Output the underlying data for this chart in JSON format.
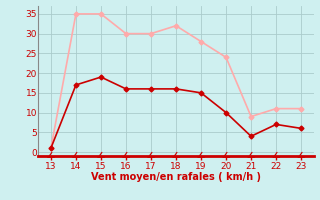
{
  "x": [
    13,
    14,
    15,
    16,
    17,
    18,
    19,
    20,
    21,
    22,
    23
  ],
  "vent_moyen": [
    1,
    17,
    19,
    16,
    16,
    16,
    15,
    10,
    4,
    7,
    6
  ],
  "rafales": [
    1,
    35,
    35,
    30,
    30,
    32,
    28,
    24,
    9,
    11,
    11
  ],
  "color_moyen": "#cc0000",
  "color_rafales": "#ffaaaa",
  "bg_color": "#cff0f0",
  "grid_color": "#aacccc",
  "xlabel": "Vent moyen/en rafales ( km/h )",
  "xlabel_color": "#cc0000",
  "yticks": [
    0,
    5,
    10,
    15,
    20,
    25,
    30,
    35
  ],
  "ylim": [
    -1,
    37
  ],
  "xlim": [
    12.5,
    23.5
  ],
  "tick_color": "#cc0000",
  "line_width": 1.2,
  "marker": "D",
  "marker_size": 2.5
}
